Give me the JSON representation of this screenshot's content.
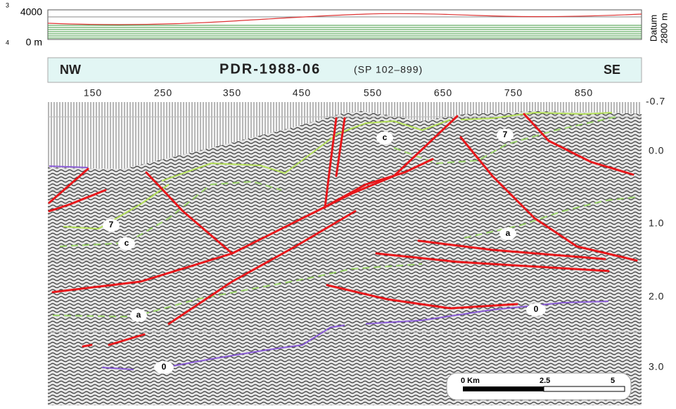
{
  "profile": {
    "elevation_top": "4000",
    "elevation_bottom": "0 m",
    "datum_label": "Datum",
    "datum_value": "2800 m",
    "corner_top": "3",
    "corner_bottom": "4"
  },
  "header": {
    "left": "NW",
    "title": "PDR-1988-06",
    "subtitle": "(SP 102–899)",
    "right": "SE"
  },
  "shotpoint_ticks": [
    "150",
    "250",
    "350",
    "450",
    "550",
    "650",
    "750",
    "850"
  ],
  "time_ticks": [
    "-0.7",
    "0.0",
    "1.0",
    "2.0",
    "3.0"
  ],
  "horizon_labels": [
    "c",
    "7",
    "7",
    "c",
    "a",
    "a",
    "0",
    "0"
  ],
  "scale_bar": {
    "start": "0 Km",
    "middle": "2.5",
    "end": "5"
  }
}
